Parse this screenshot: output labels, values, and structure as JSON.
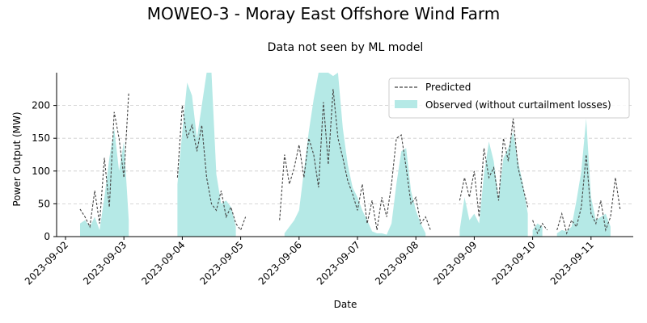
{
  "chart_data": {
    "type": "area",
    "title": "MOWEO-3 - Moray East Offshore Wind Farm",
    "subtitle": "Data not seen by ML model",
    "xlabel": "Date",
    "ylabel": "Power Output (MW)",
    "ylim": [
      0,
      250
    ],
    "yticks": [
      0,
      50,
      100,
      150,
      200
    ],
    "xticks": [
      "2023-09-02",
      "2023-09-03",
      "2023-09-04",
      "2023-09-05",
      "2023-09-06",
      "2023-09-07",
      "2023-09-08",
      "2023-09-09",
      "2023-09-10",
      "2023-09-11"
    ],
    "grid": "y-dashed",
    "legend_position": "top-right",
    "colors": {
      "observed": "#b5e9e6",
      "predicted": "#444444"
    },
    "series": [
      {
        "name": "Predicted",
        "style": "dashed-line",
        "segments": [
          {
            "x": [
              "2023-09-02T06:00",
              "2023-09-02T08:00",
              "2023-09-02T10:00",
              "2023-09-02T12:00",
              "2023-09-02T14:00",
              "2023-09-02T16:00",
              "2023-09-02T18:00",
              "2023-09-02T20:00",
              "2023-09-02T22:00",
              "2023-09-03T00:00",
              "2023-09-03T02:00"
            ],
            "y": [
              42,
              30,
              15,
              70,
              20,
              120,
              45,
              190,
              150,
              90,
              220
            ]
          },
          {
            "x": [
              "2023-09-03T22:00",
              "2023-09-04T00:00",
              "2023-09-04T02:00",
              "2023-09-04T04:00",
              "2023-09-04T06:00",
              "2023-09-04T08:00",
              "2023-09-04T10:00",
              "2023-09-04T12:00",
              "2023-09-04T14:00",
              "2023-09-04T16:00",
              "2023-09-04T18:00",
              "2023-09-04T20:00",
              "2023-09-04T22:00",
              "2023-09-05T00:00",
              "2023-09-05T02:00"
            ],
            "y": [
              90,
              200,
              150,
              170,
              130,
              170,
              90,
              50,
              40,
              70,
              30,
              45,
              20,
              10,
              30
            ]
          },
          {
            "x": [
              "2023-09-05T16:00",
              "2023-09-05T18:00",
              "2023-09-05T20:00",
              "2023-09-05T22:00",
              "2023-09-06T00:00",
              "2023-09-06T02:00",
              "2023-09-06T04:00",
              "2023-09-06T06:00",
              "2023-09-06T08:00",
              "2023-09-06T10:00",
              "2023-09-06T12:00",
              "2023-09-06T14:00",
              "2023-09-06T16:00",
              "2023-09-06T18:00",
              "2023-09-06T20:00",
              "2023-09-06T22:00",
              "2023-09-07T00:00",
              "2023-09-07T02:00",
              "2023-09-07T04:00",
              "2023-09-07T06:00",
              "2023-09-07T08:00",
              "2023-09-07T10:00",
              "2023-09-07T12:00",
              "2023-09-07T14:00",
              "2023-09-07T16:00",
              "2023-09-07T18:00",
              "2023-09-07T20:00",
              "2023-09-07T22:00",
              "2023-09-08T00:00",
              "2023-09-08T02:00",
              "2023-09-08T04:00",
              "2023-09-08T06:00"
            ],
            "y": [
              25,
              125,
              80,
              105,
              140,
              90,
              150,
              125,
              75,
              205,
              110,
              225,
              150,
              120,
              85,
              65,
              40,
              80,
              20,
              55,
              10,
              60,
              30,
              80,
              150,
              155,
              105,
              50,
              60,
              20,
              30,
              10
            ]
          },
          {
            "x": [
              "2023-09-08T18:00",
              "2023-09-08T20:00",
              "2023-09-08T22:00",
              "2023-09-09T00:00",
              "2023-09-09T02:00",
              "2023-09-09T04:00",
              "2023-09-09T06:00",
              "2023-09-09T08:00",
              "2023-09-09T10:00",
              "2023-09-09T12:00",
              "2023-09-09T14:00",
              "2023-09-09T16:00",
              "2023-09-09T18:00",
              "2023-09-09T20:00",
              "2023-09-09T22:00"
            ],
            "y": [
              55,
              90,
              60,
              100,
              30,
              135,
              90,
              105,
              55,
              150,
              115,
              180,
              105,
              75,
              45
            ]
          },
          {
            "x": [
              "2023-09-10T00:00",
              "2023-09-10T02:00",
              "2023-09-10T04:00",
              "2023-09-10T06:00"
            ],
            "y": [
              25,
              5,
              20,
              10
            ]
          },
          {
            "x": [
              "2023-09-10T10:00",
              "2023-09-10T12:00",
              "2023-09-10T14:00",
              "2023-09-10T16:00",
              "2023-09-10T18:00",
              "2023-09-10T20:00",
              "2023-09-10T22:00",
              "2023-09-11T00:00",
              "2023-09-11T02:00",
              "2023-09-11T04:00",
              "2023-09-11T06:00",
              "2023-09-11T08:00",
              "2023-09-11T10:00",
              "2023-09-11T12:00"
            ],
            "y": [
              10,
              35,
              5,
              25,
              15,
              45,
              125,
              35,
              20,
              55,
              10,
              30,
              90,
              40
            ]
          }
        ]
      },
      {
        "name": "Observed (without curtailment losses)",
        "style": "filled-area",
        "segments": [
          {
            "x": [
              "2023-09-02T06:00",
              "2023-09-02T08:00",
              "2023-09-02T10:00",
              "2023-09-02T12:00",
              "2023-09-02T14:00",
              "2023-09-02T16:00",
              "2023-09-02T18:00",
              "2023-09-02T20:00",
              "2023-09-02T22:00",
              "2023-09-03T00:00",
              "2023-09-03T02:00"
            ],
            "y": [
              20,
              25,
              15,
              30,
              10,
              60,
              120,
              165,
              100,
              145,
              25
            ]
          },
          {
            "x": [
              "2023-09-03T22:00",
              "2023-09-04T00:00",
              "2023-09-04T02:00",
              "2023-09-04T04:00",
              "2023-09-04T06:00",
              "2023-09-04T08:00",
              "2023-09-04T10:00",
              "2023-09-04T12:00",
              "2023-09-04T14:00",
              "2023-09-04T16:00",
              "2023-09-04T18:00",
              "2023-09-04T20:00",
              "2023-09-04T22:00"
            ],
            "y": [
              80,
              160,
              235,
              215,
              150,
              200,
              250,
              250,
              95,
              50,
              55,
              45,
              15
            ]
          },
          {
            "x": [
              "2023-09-05T18:00",
              "2023-09-05T20:00",
              "2023-09-05T22:00",
              "2023-09-06T00:00",
              "2023-09-06T02:00",
              "2023-09-06T04:00",
              "2023-09-06T06:00",
              "2023-09-06T08:00",
              "2023-09-06T10:00",
              "2023-09-06T12:00",
              "2023-09-06T14:00",
              "2023-09-06T16:00",
              "2023-09-06T18:00",
              "2023-09-06T20:00",
              "2023-09-06T22:00",
              "2023-09-07T00:00",
              "2023-09-07T02:00",
              "2023-09-07T04:00",
              "2023-09-07T06:00",
              "2023-09-07T08:00",
              "2023-09-07T10:00",
              "2023-09-07T12:00",
              "2023-09-07T14:00",
              "2023-09-07T16:00",
              "2023-09-07T18:00",
              "2023-09-07T20:00",
              "2023-09-07T22:00",
              "2023-09-08T00:00",
              "2023-09-08T02:00",
              "2023-09-08T04:00"
            ],
            "y": [
              5,
              15,
              25,
              40,
              100,
              160,
              210,
              250,
              250,
              250,
              245,
              250,
              165,
              110,
              75,
              60,
              40,
              25,
              8,
              5,
              5,
              3,
              20,
              80,
              130,
              135,
              70,
              40,
              20,
              5
            ]
          },
          {
            "x": [
              "2023-09-08T18:00",
              "2023-09-08T20:00",
              "2023-09-08T22:00",
              "2023-09-09T00:00",
              "2023-09-09T02:00",
              "2023-09-09T04:00",
              "2023-09-09T06:00",
              "2023-09-09T08:00",
              "2023-09-09T10:00",
              "2023-09-09T12:00",
              "2023-09-09T14:00",
              "2023-09-09T16:00",
              "2023-09-09T18:00",
              "2023-09-09T20:00",
              "2023-09-09T22:00"
            ],
            "y": [
              10,
              60,
              25,
              35,
              20,
              95,
              145,
              115,
              60,
              120,
              135,
              160,
              115,
              80,
              35
            ]
          },
          {
            "x": [
              "2023-09-10T00:00",
              "2023-09-10T02:00",
              "2023-09-10T04:00"
            ],
            "y": [
              10,
              20,
              15
            ]
          },
          {
            "x": [
              "2023-09-10T10:00",
              "2023-09-10T12:00",
              "2023-09-10T14:00",
              "2023-09-10T16:00",
              "2023-09-10T18:00",
              "2023-09-10T20:00",
              "2023-09-10T22:00",
              "2023-09-11T00:00",
              "2023-09-11T02:00",
              "2023-09-11T04:00",
              "2023-09-11T06:00",
              "2023-09-11T08:00"
            ],
            "y": [
              5,
              10,
              8,
              15,
              55,
              100,
              180,
              60,
              25,
              30,
              35,
              15
            ]
          }
        ]
      }
    ]
  }
}
